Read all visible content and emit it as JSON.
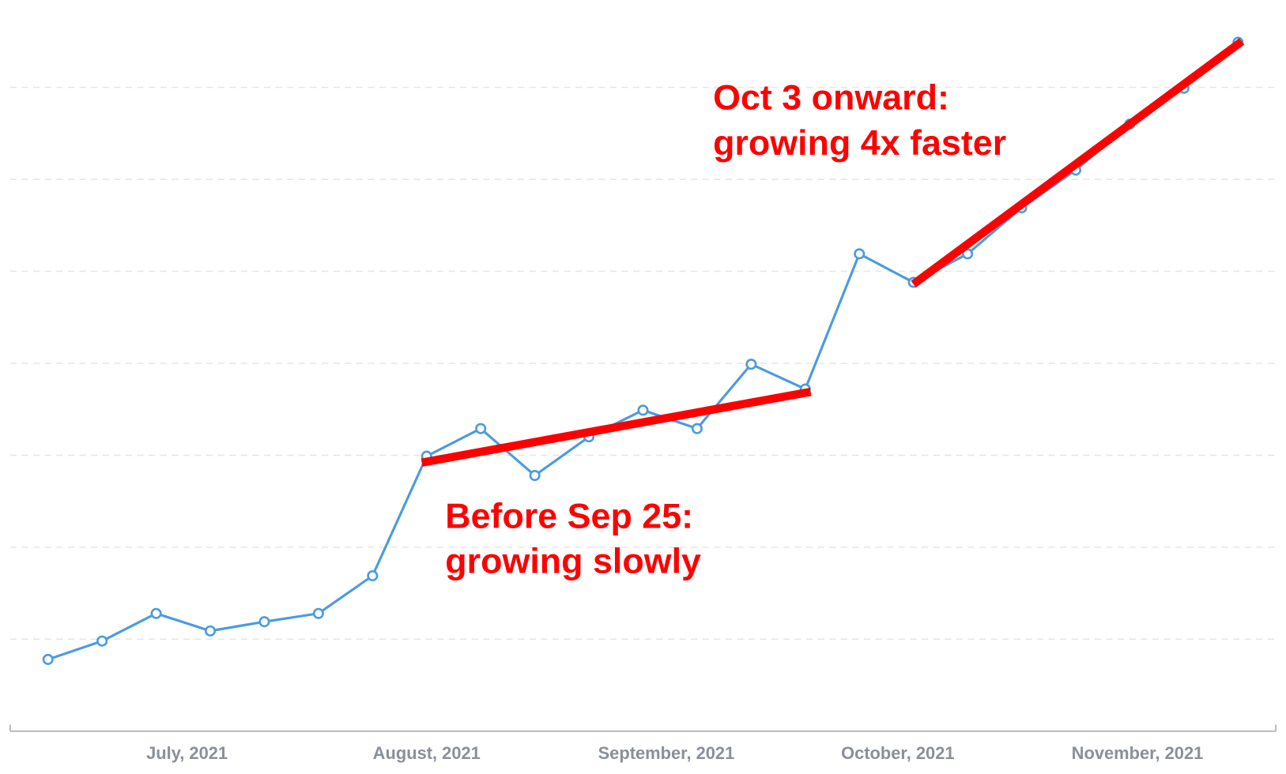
{
  "chart_data": {
    "type": "line",
    "x": [
      0,
      1,
      2,
      3,
      4,
      5,
      6,
      7,
      8,
      9,
      10,
      11,
      12,
      13,
      14,
      15,
      16,
      17,
      18,
      19,
      20,
      21,
      22
    ],
    "series": [
      {
        "name": null,
        "color": "#4a9be0",
        "values": [
          0.78,
          0.98,
          1.28,
          1.09,
          1.19,
          1.28,
          1.69,
          2.99,
          3.29,
          2.78,
          3.2,
          3.49,
          3.29,
          3.99,
          3.72,
          5.19,
          4.88,
          5.19,
          5.69,
          6.1,
          6.6,
          6.99,
          7.49
        ]
      }
    ],
    "xlim": [
      -0.7,
      22.7
    ],
    "xticks": [
      {
        "value": 2.57,
        "label": "July, 2021"
      },
      {
        "value": 7,
        "label": "August, 2021"
      },
      {
        "value": 11.43,
        "label": "September, 2021"
      },
      {
        "value": 15.71,
        "label": "October, 2021"
      },
      {
        "value": 20.14,
        "label": "November, 2021"
      }
    ],
    "ylim": [
      0,
      8
    ],
    "yticks": [
      1,
      2,
      3,
      4,
      5,
      6,
      7
    ],
    "grid": true,
    "trend_lines": [
      {
        "color": "#ff0000",
        "x": [
          6.91,
          14.1
        ],
        "y": [
          2.92,
          3.69
        ],
        "text": [
          "Before Sep 25:",
          "growing slowly"
        ]
      },
      {
        "color": "#ff0000",
        "x": [
          16.0,
          22.07
        ],
        "y": [
          4.86,
          7.5
        ],
        "text": [
          "Oct 3 onward:",
          "growing 4x faster"
        ]
      }
    ]
  }
}
